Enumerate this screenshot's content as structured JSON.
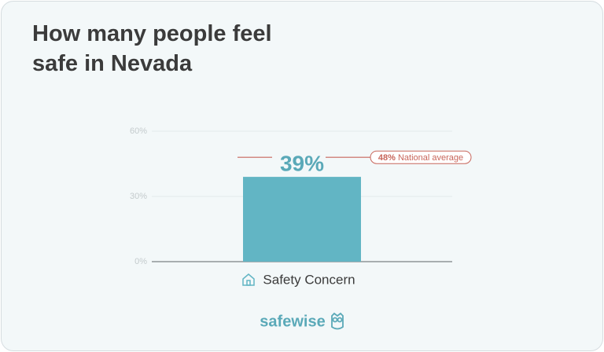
{
  "chart_data": {
    "type": "bar",
    "title": "How many people feel safe in Nevada",
    "categories": [
      "Safety Concern"
    ],
    "values": [
      39
    ],
    "value_labels": [
      "39%"
    ],
    "color": "#62b5c4",
    "ylim": [
      0,
      60
    ],
    "yticks": [
      {
        "value": 0,
        "label": "0%"
      },
      {
        "value": 30,
        "label": "30%"
      },
      {
        "value": 60,
        "label": "60%"
      }
    ],
    "grid": true,
    "reference": {
      "value": 48,
      "value_label": "48%",
      "label": "National average",
      "color": "#c8665b"
    },
    "logo": "safewise"
  }
}
